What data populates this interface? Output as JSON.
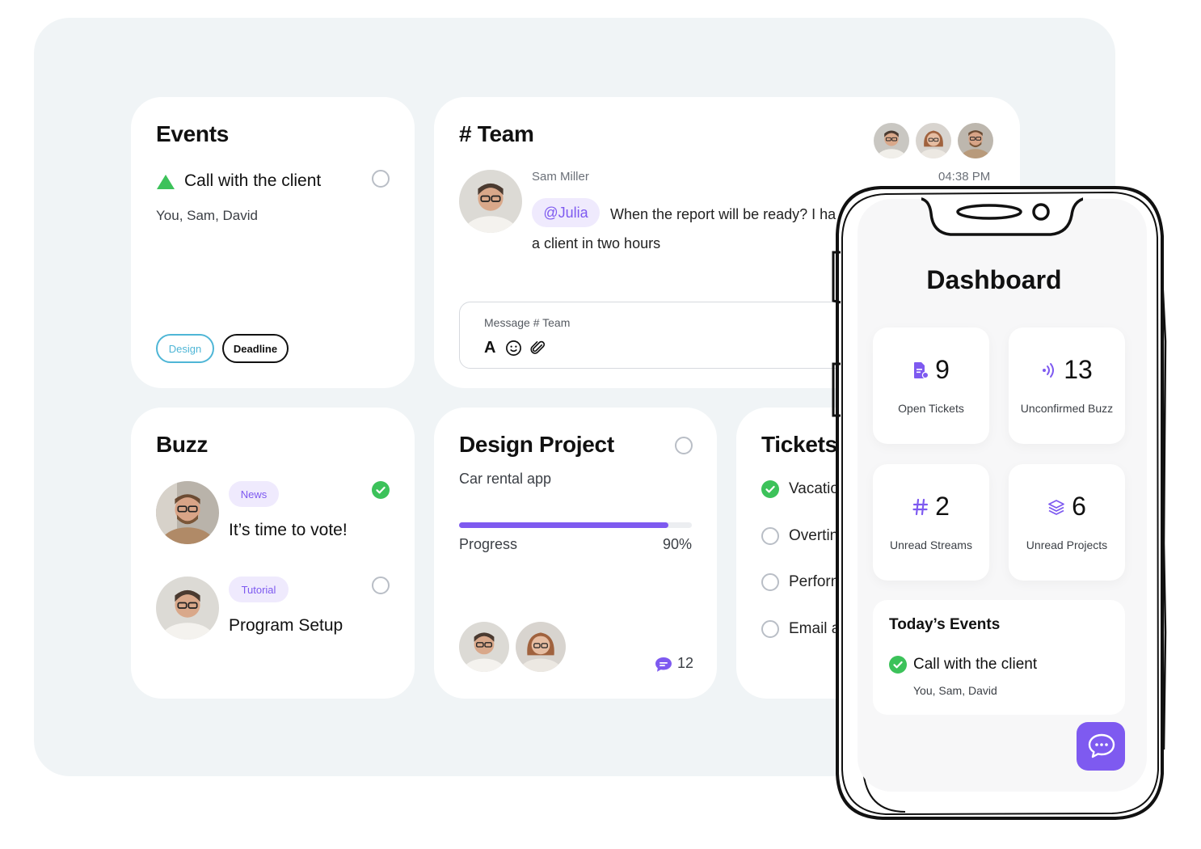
{
  "events": {
    "title": "Events",
    "item_title": "Call with the client",
    "item_people": "You, Sam, David",
    "tags": [
      "Design",
      "Deadline"
    ]
  },
  "team": {
    "title": "# Team",
    "sender": "Sam Miller",
    "time": "04:38 PM",
    "mention": "@Julia",
    "message_line1": "When the report will be ready? I ha",
    "message_line2": "a client in two hours",
    "composer_placeholder": "Message # Team",
    "composer_format_icon": "A"
  },
  "buzz": {
    "title": "Buzz",
    "items": [
      {
        "tag": "News",
        "title": "It’s time to vote!",
        "done": true
      },
      {
        "tag": "Tutorial",
        "title": "Program Setup",
        "done": false
      }
    ]
  },
  "design_project": {
    "title": "Design Project",
    "subtitle": "Car rental app",
    "progress_label": "Progress",
    "progress_value": 0.9,
    "progress_text": "90%",
    "comment_count": "12"
  },
  "tickets": {
    "title": "Tickets",
    "items": [
      {
        "label": "Vacatio",
        "done": true
      },
      {
        "label": "Overtin",
        "done": false
      },
      {
        "label": "Perforn",
        "done": false
      },
      {
        "label": "Email a",
        "done": false
      }
    ]
  },
  "phone": {
    "title": "Dashboard",
    "stats": [
      {
        "icon": "ticket-icon",
        "value": "9",
        "label": "Open Tickets"
      },
      {
        "icon": "buzz-icon",
        "value": "13",
        "label": "Unconfirmed Buzz"
      },
      {
        "icon": "hash-icon",
        "value": "2",
        "label": "Unread Streams"
      },
      {
        "icon": "layers-icon",
        "value": "6",
        "label": "Unread Projects"
      }
    ],
    "today_events_title": "Today’s Events",
    "today_event_title": "Call with the client",
    "today_event_people": "You, Sam, David",
    "chat_fab_icon": "chat-bubbles-icon"
  },
  "colors": {
    "accent": "#7e5af0",
    "success": "#3cc25a",
    "design_tag": "#4fb6d6",
    "backdrop": "#f0f4f6"
  }
}
